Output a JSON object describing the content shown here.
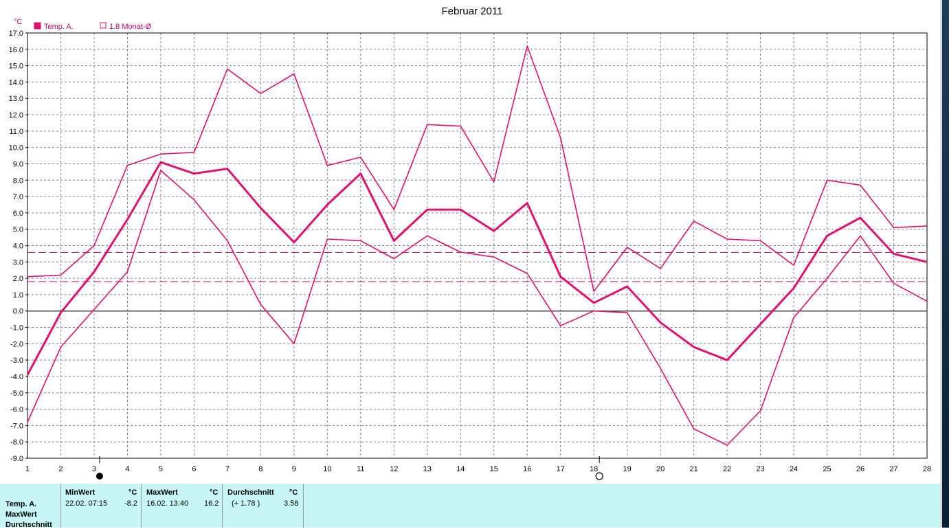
{
  "chart_data": {
    "type": "line",
    "title": "Februar 2011",
    "unit": "°C",
    "x": [
      1,
      2,
      3,
      4,
      5,
      6,
      7,
      8,
      9,
      10,
      11,
      12,
      13,
      14,
      15,
      16,
      17,
      18,
      19,
      20,
      21,
      22,
      23,
      24,
      25,
      26,
      27,
      28
    ],
    "ylim": [
      -9.0,
      17.0
    ],
    "yticks": [
      "17.0",
      "16.0",
      "15.0",
      "14.0",
      "13.0",
      "12.0",
      "11.0",
      "10.0",
      "9.0",
      "8.0",
      "7.0",
      "6.0",
      "5.0",
      "4.0",
      "3.0",
      "2.0",
      "1.0",
      "0.0",
      "-1.0",
      "-2.0",
      "-3.0",
      "-4.0",
      "-5.0",
      "-6.0",
      "-7.0",
      "-8.0",
      "-9.0"
    ],
    "grid": true,
    "legend": [
      "Temp. A.",
      "1.8 Monat-Ø"
    ],
    "series": [
      {
        "name": "Temp. A.",
        "role": "mean",
        "values": [
          -3.9,
          -0.1,
          2.4,
          5.6,
          9.1,
          8.4,
          8.7,
          6.3,
          4.2,
          6.5,
          8.4,
          4.3,
          6.2,
          6.2,
          4.9,
          6.6,
          2.1,
          0.5,
          1.5,
          -0.7,
          -2.2,
          -3.0,
          -0.8,
          1.4,
          4.6,
          5.7,
          3.5,
          3.0
        ]
      },
      {
        "role": "max",
        "values": [
          2.1,
          2.2,
          4.0,
          8.9,
          9.6,
          9.7,
          14.8,
          13.3,
          14.5,
          8.9,
          9.4,
          6.2,
          11.4,
          11.3,
          7.9,
          16.2,
          10.6,
          1.2,
          3.9,
          2.6,
          5.5,
          4.4,
          4.3,
          2.8,
          8.0,
          7.7,
          5.1,
          5.2
        ]
      },
      {
        "role": "min",
        "values": [
          -6.8,
          -2.2,
          0.1,
          2.4,
          8.6,
          6.8,
          4.3,
          0.4,
          -2.0,
          4.4,
          4.3,
          3.2,
          4.6,
          3.6,
          3.3,
          2.3,
          -0.9,
          0.0,
          -0.1,
          -3.5,
          -7.2,
          -8.2,
          -6.1,
          -0.4,
          2.0,
          4.6,
          1.7,
          0.6
        ]
      }
    ],
    "reference_lines": [
      {
        "label": "1.8 Monat-Ø",
        "value": 1.8
      },
      {
        "label": "Durchschnitt",
        "value": 3.58
      }
    ],
    "moon_phases": [
      {
        "day": 3,
        "phase": "new-moon"
      },
      {
        "day": 18,
        "phase": "full-moon"
      }
    ]
  },
  "colors": {
    "series": "#e0106e",
    "grid": "#808080",
    "zero": "#404040",
    "panel": "#c8f6f6"
  },
  "stats": {
    "row_labels": [
      "Temp. A.",
      "MaxWert",
      "Durchschnitt"
    ],
    "min": {
      "header": "MinWert",
      "unit": "°C",
      "date": "22.02.  07:15",
      "value": "-8.2"
    },
    "max": {
      "header": "MaxWert",
      "unit": "°C",
      "date": "16.02.  13:40",
      "value": "16.2"
    },
    "avg": {
      "header": "Durchschnitt",
      "unit": "°C",
      "note": "(+ 1.78 )",
      "value": "3.58"
    }
  }
}
